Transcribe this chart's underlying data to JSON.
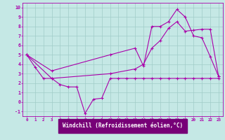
{
  "background_color": "#c5e8e5",
  "grid_color": "#a0ccc8",
  "line_color": "#aa00aa",
  "xlabel": "Windchill (Refroidissement éolien,°C)",
  "xlabel_bg": "#770077",
  "xlabel_fg": "#ffffff",
  "ylim": [
    -1.5,
    10.5
  ],
  "xlim": [
    -0.5,
    23.5
  ],
  "yticks": [
    -1,
    0,
    1,
    2,
    3,
    4,
    5,
    6,
    7,
    8,
    9,
    10
  ],
  "line1_x": [
    0,
    1,
    2,
    3,
    4,
    5,
    6,
    7,
    8,
    9,
    10,
    11,
    12,
    13,
    14,
    15,
    16,
    17,
    18,
    19,
    20,
    21,
    22,
    23
  ],
  "line1_y": [
    5.0,
    3.7,
    2.5,
    2.5,
    1.85,
    1.6,
    1.6,
    -1.2,
    0.3,
    0.4,
    2.5,
    2.5,
    2.5,
    2.5,
    2.5,
    2.5,
    2.5,
    2.5,
    2.5,
    2.5,
    2.5,
    2.5,
    2.5,
    2.5
  ],
  "line2_x": [
    0,
    3,
    10,
    13,
    14,
    15,
    16,
    17,
    18,
    19,
    20,
    21,
    22,
    23
  ],
  "line2_y": [
    5.0,
    3.3,
    5.0,
    5.7,
    3.8,
    8.0,
    8.0,
    8.5,
    9.8,
    9.0,
    7.0,
    6.8,
    4.8,
    2.7
  ],
  "line3_x": [
    0,
    3,
    10,
    13,
    14,
    15,
    16,
    17,
    18,
    19,
    20,
    21,
    22,
    23
  ],
  "line3_y": [
    5.0,
    2.5,
    3.0,
    3.5,
    4.0,
    5.7,
    6.5,
    7.8,
    8.5,
    7.5,
    7.6,
    7.7,
    7.7,
    2.7
  ]
}
